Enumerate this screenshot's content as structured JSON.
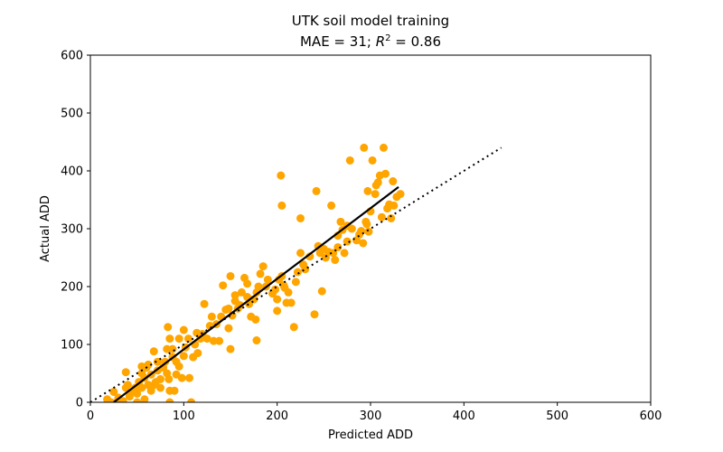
{
  "chart_data": {
    "type": "scatter",
    "title": "UTK soil model training",
    "subtitle_prefix": "MAE = 31; ",
    "subtitle_r": "R",
    "subtitle_sup": "2",
    "subtitle_suffix": " = 0.86",
    "xlabel": "Predicted ADD",
    "ylabel": "Actual ADD",
    "xlim": [
      0,
      600
    ],
    "ylim": [
      0,
      600
    ],
    "xticks": [
      "0",
      "100",
      "200",
      "300",
      "400",
      "500",
      "600"
    ],
    "yticks": [
      "0",
      "100",
      "200",
      "300",
      "400",
      "500",
      "600"
    ],
    "grid": false,
    "point_color": "#FFA500",
    "fit_line_color": "#000000",
    "identity_line_color": "#000000",
    "fit_line": {
      "x": [
        25,
        330
      ],
      "y": [
        0,
        372
      ]
    },
    "identity_line": {
      "x": [
        0,
        440
      ],
      "y": [
        0,
        440
      ]
    },
    "points": [
      [
        18,
        5
      ],
      [
        22,
        0
      ],
      [
        25,
        18
      ],
      [
        28,
        0
      ],
      [
        30,
        8
      ],
      [
        35,
        2
      ],
      [
        38,
        25
      ],
      [
        40,
        30
      ],
      [
        38,
        52
      ],
      [
        42,
        10
      ],
      [
        45,
        18
      ],
      [
        48,
        25
      ],
      [
        50,
        15
      ],
      [
        50,
        0
      ],
      [
        52,
        35
      ],
      [
        55,
        25
      ],
      [
        55,
        50
      ],
      [
        55,
        62
      ],
      [
        58,
        5
      ],
      [
        58,
        42
      ],
      [
        60,
        60
      ],
      [
        62,
        30
      ],
      [
        62,
        65
      ],
      [
        65,
        20
      ],
      [
        65,
        48
      ],
      [
        68,
        88
      ],
      [
        68,
        30
      ],
      [
        70,
        35
      ],
      [
        72,
        55
      ],
      [
        72,
        70
      ],
      [
        75,
        40
      ],
      [
        75,
        25
      ],
      [
        78,
        60
      ],
      [
        80,
        70
      ],
      [
        82,
        50
      ],
      [
        82,
        92
      ],
      [
        83,
        130
      ],
      [
        84,
        40
      ],
      [
        85,
        20
      ],
      [
        85,
        0
      ],
      [
        85,
        110
      ],
      [
        88,
        78
      ],
      [
        88,
        92
      ],
      [
        90,
        20
      ],
      [
        92,
        48
      ],
      [
        92,
        70
      ],
      [
        95,
        110
      ],
      [
        95,
        62
      ],
      [
        98,
        42
      ],
      [
        100,
        125
      ],
      [
        100,
        80
      ],
      [
        102,
        95
      ],
      [
        105,
        110
      ],
      [
        106,
        42
      ],
      [
        108,
        0
      ],
      [
        110,
        78
      ],
      [
        112,
        100
      ],
      [
        114,
        120
      ],
      [
        115,
        85
      ],
      [
        118,
        110
      ],
      [
        120,
        118
      ],
      [
        122,
        170
      ],
      [
        125,
        110
      ],
      [
        128,
        132
      ],
      [
        130,
        148
      ],
      [
        132,
        106
      ],
      [
        135,
        135
      ],
      [
        138,
        106
      ],
      [
        140,
        148
      ],
      [
        142,
        202
      ],
      [
        145,
        160
      ],
      [
        148,
        128
      ],
      [
        148,
        162
      ],
      [
        150,
        92
      ],
      [
        150,
        218
      ],
      [
        152,
        150
      ],
      [
        155,
        185
      ],
      [
        155,
        175
      ],
      [
        158,
        162
      ],
      [
        160,
        168
      ],
      [
        162,
        190
      ],
      [
        165,
        215
      ],
      [
        168,
        205
      ],
      [
        168,
        182
      ],
      [
        170,
        170
      ],
      [
        172,
        148
      ],
      [
        175,
        178
      ],
      [
        177,
        143
      ],
      [
        178,
        107
      ],
      [
        178,
        190
      ],
      [
        180,
        200
      ],
      [
        182,
        222
      ],
      [
        185,
        235
      ],
      [
        188,
        200
      ],
      [
        190,
        212
      ],
      [
        195,
        188
      ],
      [
        198,
        195
      ],
      [
        200,
        178
      ],
      [
        200,
        158
      ],
      [
        202,
        212
      ],
      [
        204,
        392
      ],
      [
        205,
        340
      ],
      [
        205,
        218
      ],
      [
        207,
        202
      ],
      [
        208,
        198
      ],
      [
        210,
        172
      ],
      [
        212,
        190
      ],
      [
        215,
        172
      ],
      [
        218,
        130
      ],
      [
        220,
        208
      ],
      [
        222,
        225
      ],
      [
        225,
        258
      ],
      [
        225,
        318
      ],
      [
        228,
        238
      ],
      [
        230,
        230
      ],
      [
        235,
        252
      ],
      [
        240,
        152
      ],
      [
        242,
        365
      ],
      [
        244,
        270
      ],
      [
        246,
        258
      ],
      [
        248,
        192
      ],
      [
        250,
        265
      ],
      [
        252,
        250
      ],
      [
        255,
        260
      ],
      [
        258,
        340
      ],
      [
        260,
        258
      ],
      [
        262,
        246
      ],
      [
        265,
        268
      ],
      [
        265,
        288
      ],
      [
        268,
        312
      ],
      [
        270,
        298
      ],
      [
        272,
        258
      ],
      [
        275,
        278
      ],
      [
        275,
        305
      ],
      [
        278,
        418
      ],
      [
        280,
        300
      ],
      [
        285,
        280
      ],
      [
        288,
        290
      ],
      [
        290,
        296
      ],
      [
        292,
        275
      ],
      [
        293,
        440
      ],
      [
        295,
        312
      ],
      [
        296,
        308
      ],
      [
        297,
        365
      ],
      [
        298,
        295
      ],
      [
        300,
        330
      ],
      [
        302,
        418
      ],
      [
        305,
        360
      ],
      [
        306,
        375
      ],
      [
        308,
        380
      ],
      [
        310,
        392
      ],
      [
        312,
        320
      ],
      [
        314,
        440
      ],
      [
        316,
        395
      ],
      [
        318,
        335
      ],
      [
        320,
        342
      ],
      [
        322,
        318
      ],
      [
        324,
        382
      ],
      [
        325,
        340
      ],
      [
        328,
        355
      ],
      [
        332,
        360
      ]
    ]
  }
}
